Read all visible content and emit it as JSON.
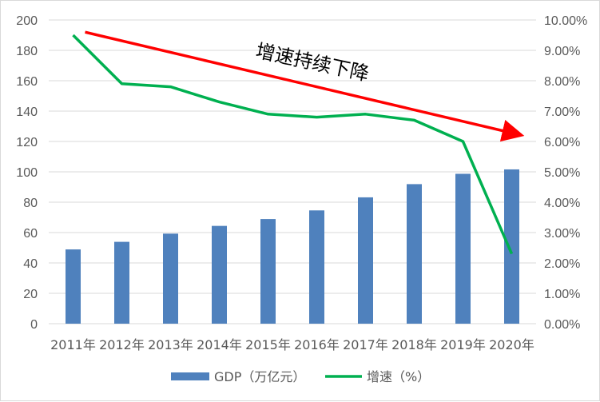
{
  "chart_data": {
    "type": "bar+line",
    "categories": [
      "2011年",
      "2012年",
      "2013年",
      "2014年",
      "2015年",
      "2016年",
      "2017年",
      "2018年",
      "2019年",
      "2020年"
    ],
    "series": [
      {
        "name": "GDP（万亿元）",
        "type": "bar",
        "axis": "left",
        "color": "#4f81bd",
        "values": [
          48.9,
          53.9,
          59.3,
          64.4,
          68.9,
          74.6,
          83.2,
          91.9,
          98.7,
          101.6
        ]
      },
      {
        "name": "增速（%）",
        "type": "line",
        "axis": "right",
        "color": "#00b050",
        "values": [
          9.5,
          7.9,
          7.8,
          7.3,
          6.9,
          6.8,
          6.9,
          6.7,
          6.0,
          2.3
        ]
      }
    ],
    "y_left": {
      "ylim": [
        0,
        200
      ],
      "ticks": [
        "0",
        "20",
        "40",
        "60",
        "80",
        "100",
        "120",
        "140",
        "160",
        "180",
        "200"
      ]
    },
    "y_right": {
      "ylim": [
        0,
        10
      ],
      "ticks": [
        "0.00%",
        "1.00%",
        "2.00%",
        "3.00%",
        "4.00%",
        "5.00%",
        "6.00%",
        "7.00%",
        "8.00%",
        "9.00%",
        "10.00%"
      ]
    },
    "grid": true,
    "legend_position": "bottom",
    "annotation": {
      "text": "增速持续下降",
      "arrow_color": "#ff0000",
      "arrow_from": [
        "2011年",
        9.6
      ],
      "arrow_to": [
        "2020年",
        6.2
      ]
    }
  }
}
